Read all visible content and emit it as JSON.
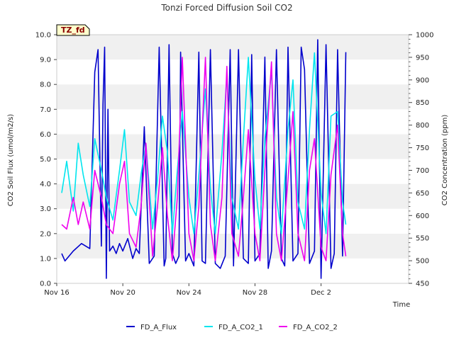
{
  "chart_data": {
    "type": "line",
    "title": "Tonzi Forced Diffusion Soil CO2",
    "site_label": "TZ_fd",
    "xlabel": "Time",
    "ylabel_left": "CO2 Soil Flux (umol/m2/s)",
    "ylabel_right": "CO2 Concentration (ppm)",
    "x_unit": "days since Nov 16",
    "xlim": [
      0,
      21.3
    ],
    "ylim_left": [
      0,
      10
    ],
    "ylim_right": [
      450,
      1000
    ],
    "x_ticks": [
      {
        "value": 0,
        "label": "Nov 16"
      },
      {
        "value": 4,
        "label": "Nov 20"
      },
      {
        "value": 8,
        "label": "Nov 24"
      },
      {
        "value": 12,
        "label": "Nov 28"
      },
      {
        "value": 16,
        "label": "Dec 2"
      }
    ],
    "y_ticks_left": [
      {
        "value": 0,
        "label": "0.0"
      },
      {
        "value": 1,
        "label": "1.0"
      },
      {
        "value": 2,
        "label": "2.0"
      },
      {
        "value": 3,
        "label": "3.0"
      },
      {
        "value": 4,
        "label": "4.0"
      },
      {
        "value": 5,
        "label": "5.0"
      },
      {
        "value": 6,
        "label": "6.0"
      },
      {
        "value": 7,
        "label": "7.0"
      },
      {
        "value": 8,
        "label": "8.0"
      },
      {
        "value": 9,
        "label": "9.0"
      },
      {
        "value": 10,
        "label": "10.0"
      }
    ],
    "y_ticks_right": [
      {
        "value": 450,
        "label": "450"
      },
      {
        "value": 500,
        "label": "500"
      },
      {
        "value": 550,
        "label": "550"
      },
      {
        "value": 600,
        "label": "600"
      },
      {
        "value": 650,
        "label": "650"
      },
      {
        "value": 700,
        "label": "700"
      },
      {
        "value": 750,
        "label": "750"
      },
      {
        "value": 800,
        "label": "800"
      },
      {
        "value": 850,
        "label": "850"
      },
      {
        "value": 900,
        "label": "900"
      },
      {
        "value": 950,
        "label": "950"
      },
      {
        "value": 1000,
        "label": "1000"
      }
    ],
    "grid": "horizontal bands",
    "legend_position": "bottom-center",
    "series": [
      {
        "name": "FD_A_Flux",
        "axis": "left",
        "color": "#0000cc",
        "x": [
          0.3,
          0.5,
          1.0,
          1.5,
          2.0,
          2.3,
          2.5,
          2.7,
          2.8,
          2.9,
          3.0,
          3.1,
          3.2,
          3.4,
          3.6,
          3.8,
          4.0,
          4.3,
          4.6,
          4.8,
          5.0,
          5.3,
          5.6,
          5.9,
          6.2,
          6.5,
          6.6,
          6.8,
          7.0,
          7.2,
          7.4,
          7.5,
          7.8,
          8.0,
          8.3,
          8.6,
          8.8,
          9.0,
          9.3,
          9.6,
          9.9,
          10.2,
          10.5,
          10.7,
          11.0,
          11.3,
          11.6,
          11.8,
          12.0,
          12.3,
          12.6,
          12.8,
          13.0,
          13.3,
          13.6,
          13.8,
          14.0,
          14.3,
          14.6,
          14.8,
          15.0,
          15.3,
          15.6,
          15.8,
          16.0,
          16.3,
          16.6,
          16.8,
          17.0,
          17.3,
          17.5
        ],
        "values": [
          1.2,
          0.9,
          1.3,
          1.6,
          1.4,
          8.5,
          9.4,
          1.5,
          7.2,
          9.5,
          0.2,
          7.0,
          1.3,
          1.5,
          1.2,
          1.6,
          1.3,
          1.8,
          1.0,
          1.4,
          1.2,
          6.3,
          0.8,
          1.1,
          9.5,
          0.7,
          1.0,
          9.6,
          1.2,
          0.8,
          1.1,
          9.3,
          0.9,
          1.2,
          0.7,
          9.3,
          0.9,
          0.8,
          9.4,
          0.8,
          0.6,
          1.1,
          9.4,
          0.7,
          9.4,
          1.0,
          0.8,
          9.2,
          0.9,
          1.2,
          9.1,
          0.6,
          1.3,
          9.4,
          1.0,
          0.7,
          9.5,
          0.9,
          1.2,
          9.5,
          8.6,
          0.8,
          1.3,
          9.8,
          0.2,
          9.6,
          0.6,
          1.2,
          9.4,
          1.1,
          9.3
        ]
      },
      {
        "name": "FD_A_CO2_1",
        "axis": "right",
        "color": "#00e5ee",
        "x": [
          0.3,
          0.6,
          1.0,
          1.3,
          1.6,
          2.0,
          2.3,
          2.7,
          3.0,
          3.4,
          3.8,
          4.1,
          4.4,
          4.8,
          5.1,
          5.4,
          5.8,
          6.1,
          6.4,
          6.7,
          7.0,
          7.3,
          7.6,
          8.0,
          8.3,
          8.6,
          9.0,
          9.3,
          9.6,
          10.0,
          10.3,
          10.6,
          11.0,
          11.3,
          11.6,
          12.0,
          12.3,
          12.6,
          13.0,
          13.3,
          13.6,
          14.0,
          14.3,
          14.6,
          15.0,
          15.3,
          15.6,
          16.0,
          16.3,
          16.6,
          17.0,
          17.3,
          17.5
        ],
        "values": [
          650,
          720,
          610,
          760,
          690,
          620,
          770,
          700,
          640,
          590,
          700,
          790,
          630,
          600,
          690,
          760,
          570,
          680,
          820,
          740,
          560,
          700,
          830,
          640,
          560,
          690,
          880,
          660,
          560,
          740,
          910,
          640,
          570,
          770,
          950,
          680,
          570,
          770,
          920,
          640,
          560,
          790,
          900,
          630,
          570,
          790,
          960,
          650,
          560,
          820,
          830,
          630,
          580
        ]
      },
      {
        "name": "FD_A_CO2_2",
        "axis": "right",
        "color": "#ee00ee",
        "x": [
          0.3,
          0.6,
          1.0,
          1.3,
          1.6,
          2.0,
          2.3,
          2.7,
          3.0,
          3.4,
          3.8,
          4.1,
          4.4,
          4.8,
          5.1,
          5.4,
          5.8,
          6.1,
          6.4,
          6.7,
          7.0,
          7.3,
          7.6,
          8.0,
          8.3,
          8.6,
          9.0,
          9.3,
          9.6,
          10.0,
          10.3,
          10.6,
          11.0,
          11.3,
          11.6,
          12.0,
          12.3,
          12.6,
          13.0,
          13.3,
          13.6,
          14.0,
          14.3,
          14.6,
          15.0,
          15.3,
          15.6,
          16.0,
          16.3,
          16.6,
          17.0,
          17.3,
          17.5
        ],
        "values": [
          580,
          570,
          640,
          580,
          630,
          570,
          700,
          640,
          580,
          560,
          670,
          720,
          560,
          530,
          620,
          760,
          510,
          620,
          750,
          600,
          500,
          640,
          950,
          560,
          500,
          620,
          950,
          580,
          500,
          640,
          930,
          560,
          510,
          640,
          790,
          560,
          500,
          700,
          940,
          560,
          500,
          680,
          830,
          560,
          500,
          700,
          770,
          530,
          500,
          690,
          800,
          560,
          510
        ]
      }
    ]
  }
}
